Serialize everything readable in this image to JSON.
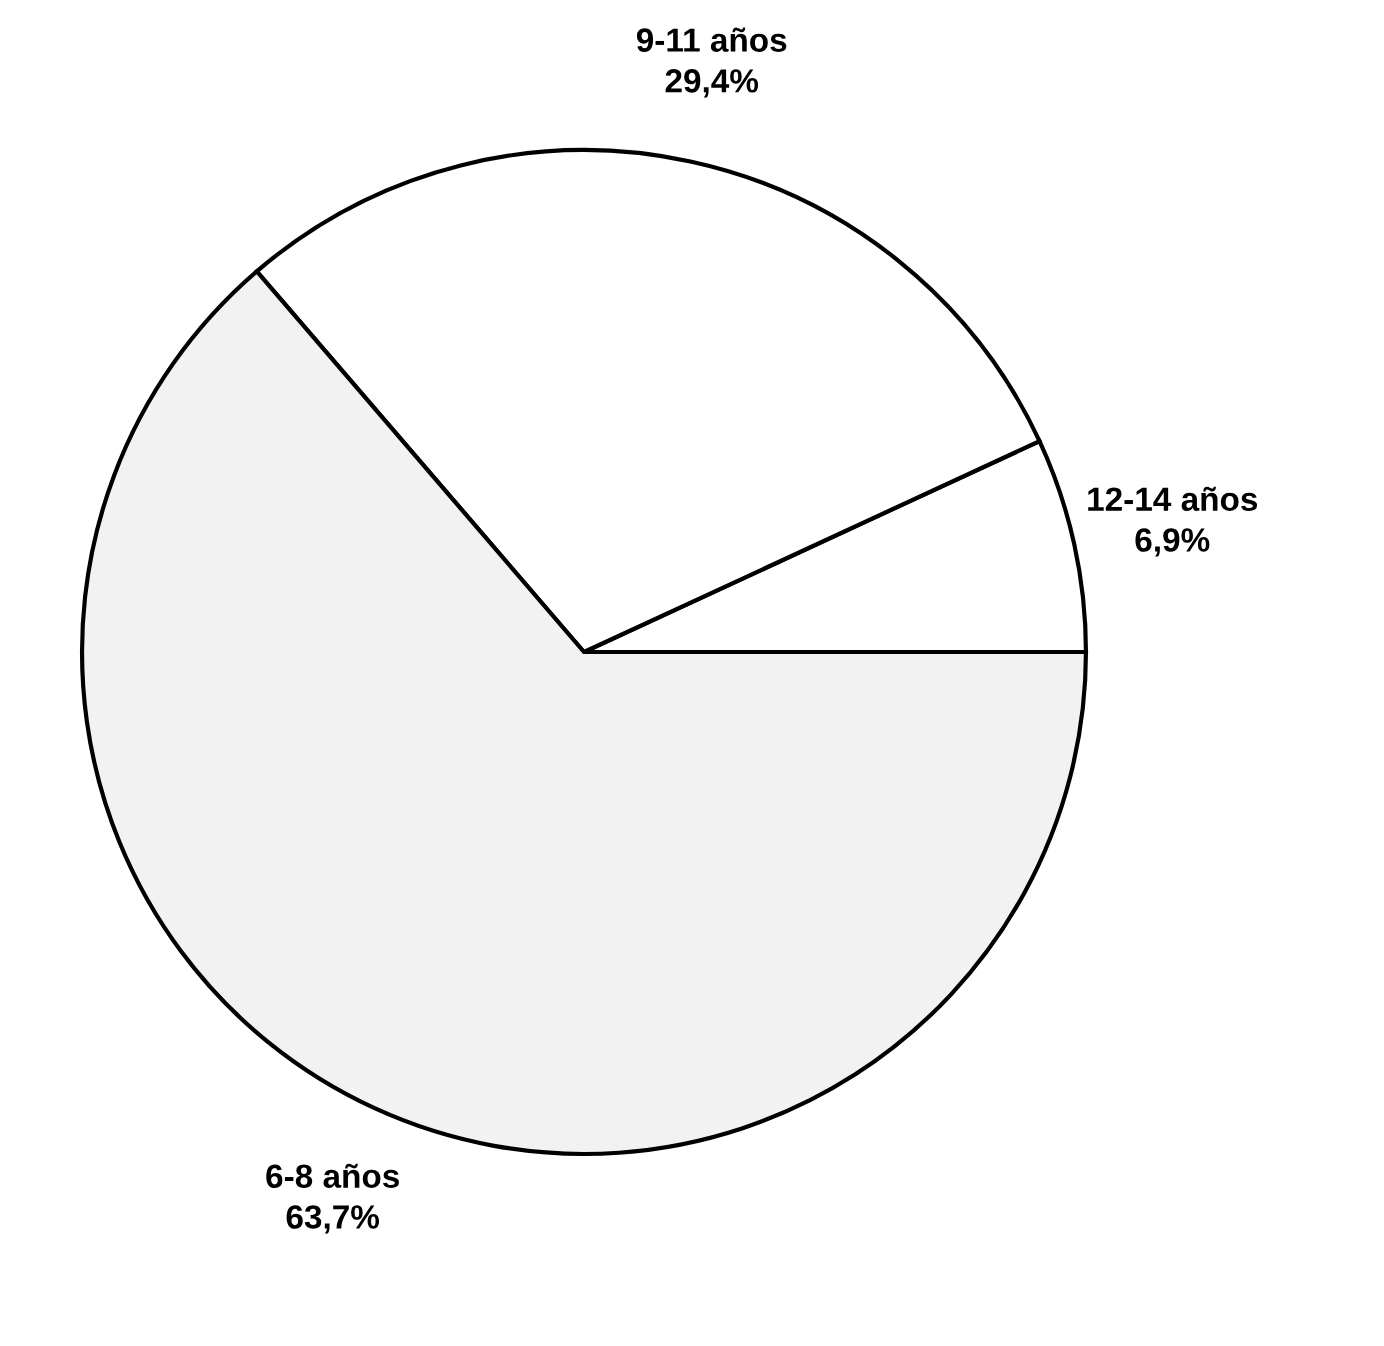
{
  "chart_data": {
    "type": "pie",
    "categories": [
      "12-14 años",
      "9-11 años",
      "6-8 años"
    ],
    "values": [
      6.9,
      29.4,
      63.7
    ],
    "value_labels": [
      "6,9%",
      "29,4%",
      "63,7%"
    ],
    "colors": [
      "#ffffff",
      "#ffffff",
      "#f2f2f2"
    ]
  }
}
